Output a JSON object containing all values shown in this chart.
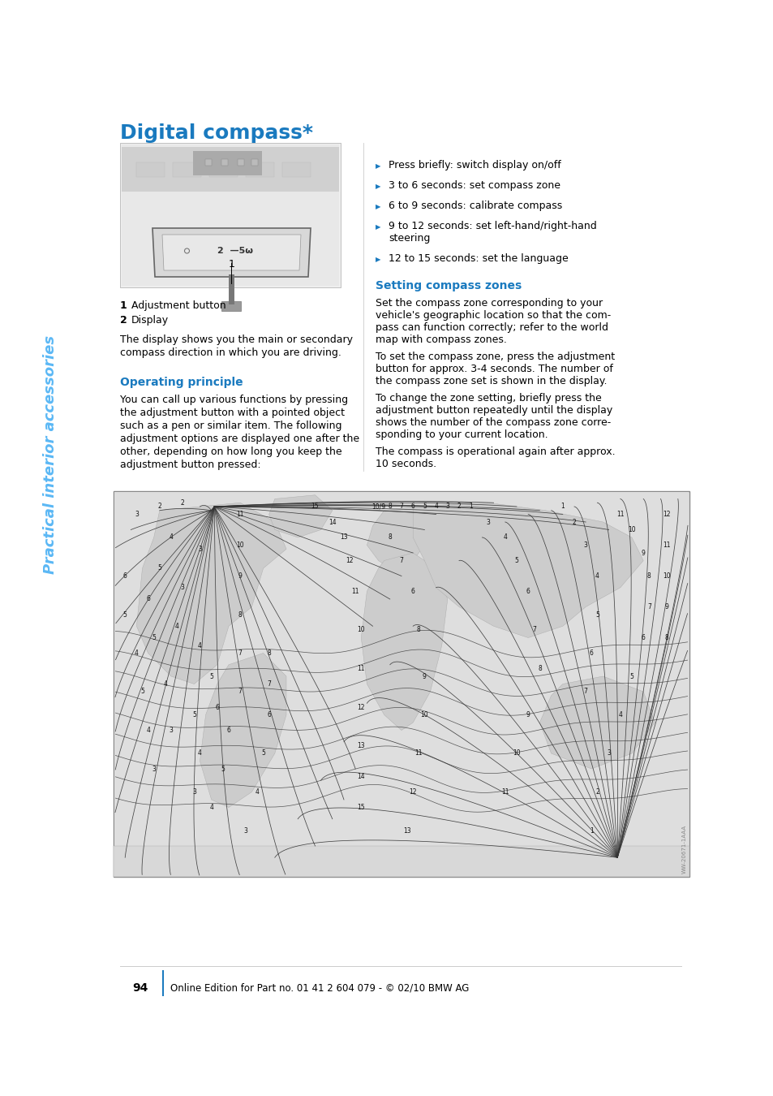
{
  "title": "Digital compass*",
  "sidebar_text": "Practical interior accessories",
  "section1_heading": "Operating principle",
  "section2_heading": "Setting compass zones",
  "bullet_items": [
    [
      "Press briefly: switch display on/off"
    ],
    [
      "3 to 6 seconds: set compass zone"
    ],
    [
      "6 to 9 seconds: calibrate compass"
    ],
    [
      "9 to 12 seconds: set left-hand/right-hand",
      "steering"
    ],
    [
      "12 to 15 seconds: set the language"
    ]
  ],
  "label1_num": "1",
  "label1_text": "Adjustment button",
  "label2_num": "2",
  "label2_text": "Display",
  "caption_text": "The display shows you the main or secondary\ncompass direction in which you are driving.",
  "op_principle_text": "You can call up various functions by pressing\nthe adjustment button with a pointed object\nsuch as a pen or similar item. The following\nadjustment options are displayed one after the\nother, depending on how long you keep the\nadjustment button pressed:",
  "setting_zones_text1": "Set the compass zone corresponding to your\nvehicle's geographic location so that the com-\npass can function correctly; refer to the world\nmap with compass zones.",
  "setting_zones_text2": "To set the compass zone, press the adjustment\nbutton for approx. 3-4 seconds. The number of\nthe compass zone set is shown in the display.",
  "setting_zones_text3": "To change the zone setting, briefly press the\nadjustment button repeatedly until the display\nshows the number of the compass zone corre-\nsponding to your current location.",
  "setting_zones_text4": "The compass is operational again after approx.\n10 seconds.",
  "footer_page": "94",
  "footer_text": "Online Edition for Part no. 01 41 2 604 079 - © 02/10 BMW AG",
  "blue_color": "#1a7abf",
  "light_blue": "#5bb8f5",
  "text_color": "#000000",
  "bg_color": "#ffffff"
}
